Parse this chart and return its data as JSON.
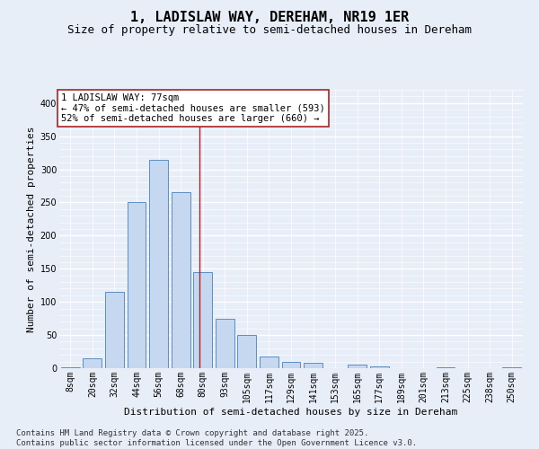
{
  "title": "1, LADISLAW WAY, DEREHAM, NR19 1ER",
  "subtitle": "Size of property relative to semi-detached houses in Dereham",
  "xlabel": "Distribution of semi-detached houses by size in Dereham",
  "ylabel": "Number of semi-detached properties",
  "categories": [
    "8sqm",
    "20sqm",
    "32sqm",
    "44sqm",
    "56sqm",
    "68sqm",
    "80sqm",
    "93sqm",
    "105sqm",
    "117sqm",
    "129sqm",
    "141sqm",
    "153sqm",
    "165sqm",
    "177sqm",
    "189sqm",
    "201sqm",
    "213sqm",
    "225sqm",
    "238sqm",
    "250sqm"
  ],
  "values": [
    2,
    15,
    115,
    250,
    315,
    265,
    145,
    75,
    50,
    18,
    10,
    8,
    0,
    5,
    3,
    0,
    0,
    2,
    0,
    0,
    2
  ],
  "bar_color": "#c5d8f0",
  "bar_edge_color": "#5b8ec4",
  "vline_x_index": 5.85,
  "vline_color": "#aa2222",
  "annotation_text": "1 LADISLAW WAY: 77sqm\n← 47% of semi-detached houses are smaller (593)\n52% of semi-detached houses are larger (660) →",
  "annotation_box_facecolor": "#ffffff",
  "annotation_box_edgecolor": "#aa2222",
  "ylim": [
    0,
    420
  ],
  "yticks": [
    0,
    50,
    100,
    150,
    200,
    250,
    300,
    350,
    400
  ],
  "footer": "Contains HM Land Registry data © Crown copyright and database right 2025.\nContains public sector information licensed under the Open Government Licence v3.0.",
  "bg_color": "#e8eef8",
  "title_fontsize": 11,
  "subtitle_fontsize": 9,
  "axis_label_fontsize": 8,
  "tick_fontsize": 7,
  "footer_fontsize": 6.5,
  "annotation_fontsize": 7.5
}
